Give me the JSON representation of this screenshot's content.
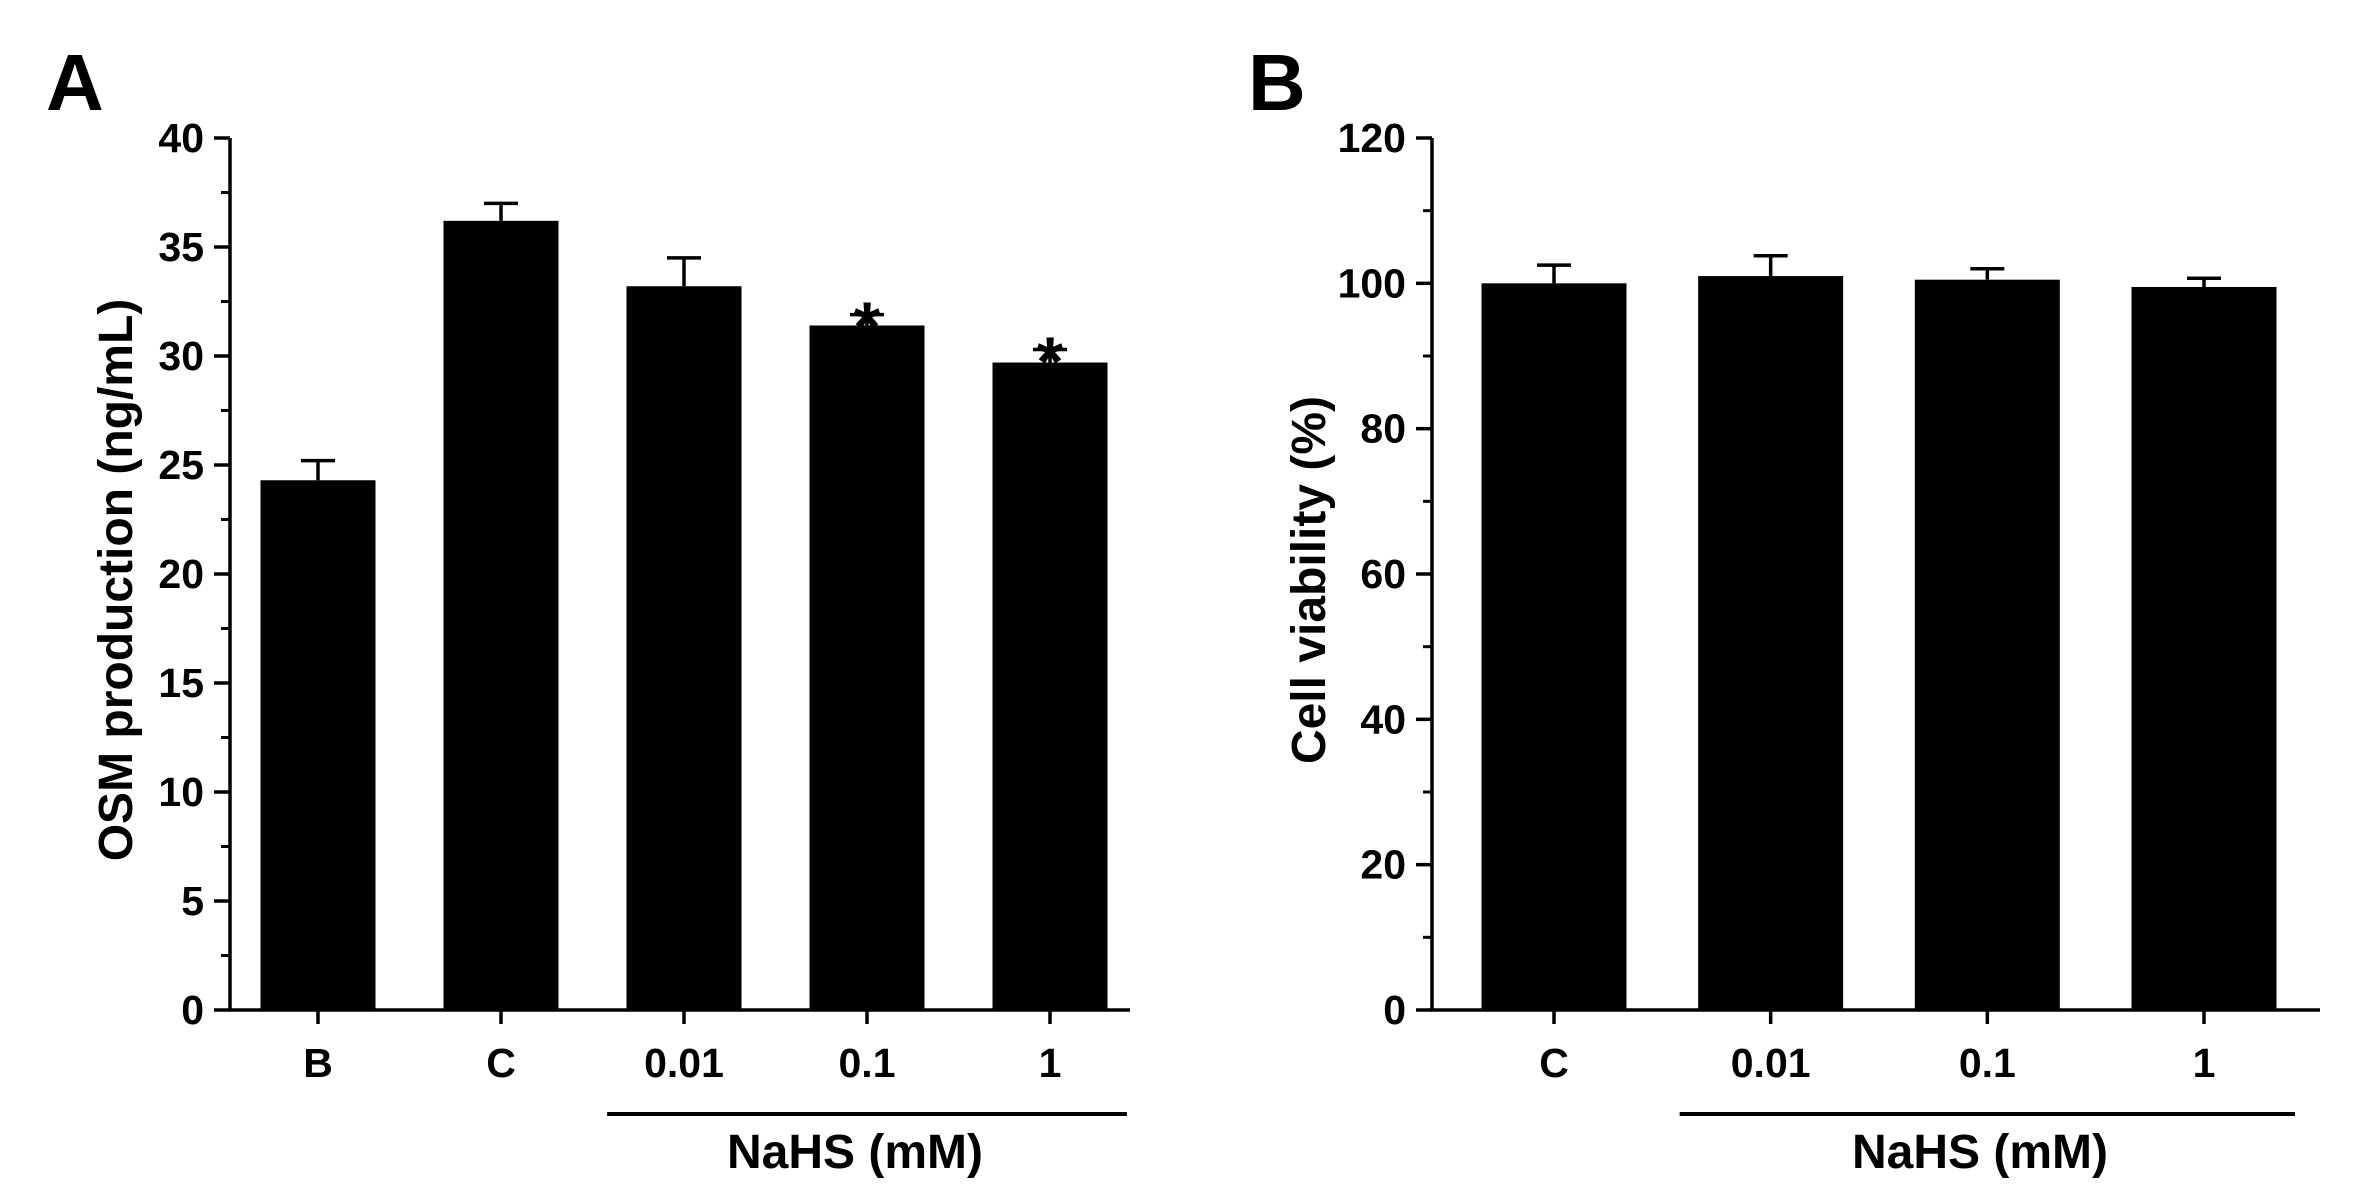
{
  "chart_data": [
    {
      "type": "bar",
      "panel": "A",
      "categories": [
        "B",
        "C",
        "0.01",
        "0.1",
        "1"
      ],
      "values": [
        24.3,
        36.2,
        33.2,
        31.4,
        29.7
      ],
      "errors": [
        0.9,
        0.8,
        1.3,
        0.5,
        0.6
      ],
      "annotations": [
        "",
        "",
        "",
        "*",
        "*"
      ],
      "ylabel": "OSM production (ng/mL)",
      "xlabel": "",
      "group_label": "NaHS (mM)",
      "group_range": [
        2,
        4
      ],
      "ylim": [
        0,
        40
      ],
      "yticks": [
        0,
        5,
        10,
        15,
        20,
        25,
        30,
        35,
        40
      ],
      "ytick_labels": [
        "0",
        "5",
        "10",
        "15",
        "20",
        "25",
        "30",
        "35",
        "40"
      ],
      "bar_color": "#000000",
      "grid": false
    },
    {
      "type": "bar",
      "panel": "B",
      "categories": [
        "C",
        "0.01",
        "0.1",
        "1"
      ],
      "values": [
        100.0,
        101.0,
        100.5,
        99.5
      ],
      "errors": [
        2.5,
        2.8,
        1.5,
        1.2
      ],
      "annotations": [
        "",
        "",
        "",
        ""
      ],
      "ylabel": "Cell viability (%)",
      "xlabel": "",
      "group_label": "NaHS (mM)",
      "group_range": [
        1,
        3
      ],
      "ylim": [
        0,
        120
      ],
      "yticks": [
        0,
        20,
        40,
        60,
        80,
        100,
        120
      ],
      "ytick_labels": [
        "0",
        "20",
        "40",
        "60",
        "80",
        "100",
        "120"
      ],
      "bar_color": "#000000",
      "grid": false
    }
  ]
}
